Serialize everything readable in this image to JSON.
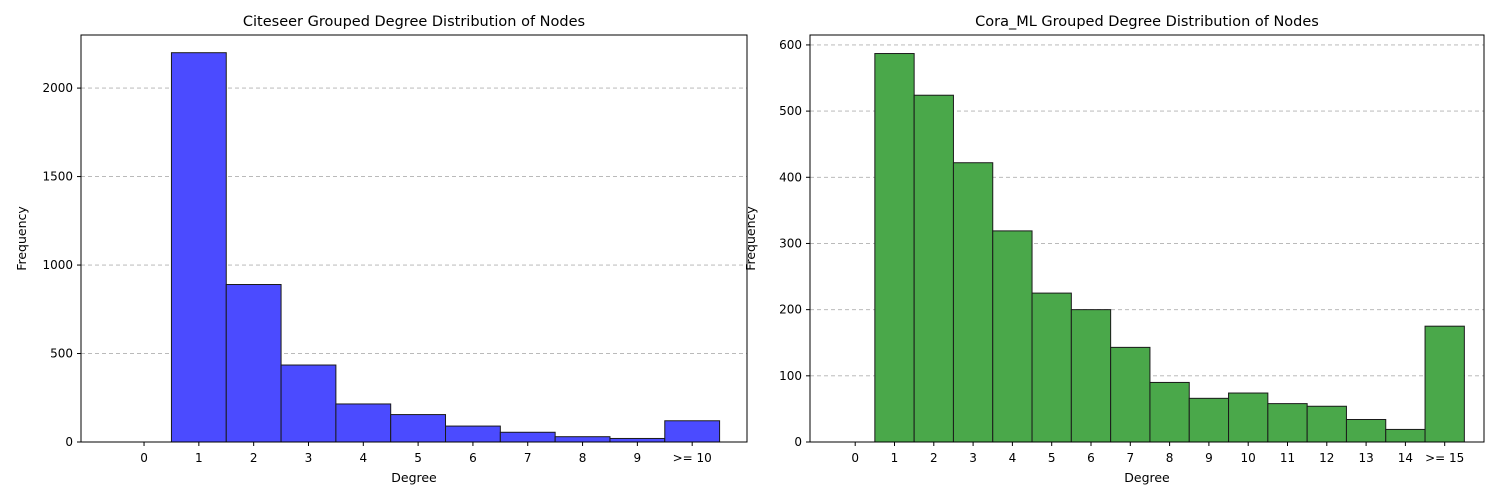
{
  "chart_data": [
    {
      "type": "bar",
      "title": "Citeseer Grouped Degree Distribution of Nodes",
      "xlabel": "Degree",
      "ylabel": "Frequency",
      "categories": [
        "0",
        "1",
        "2",
        "3",
        "4",
        "5",
        "6",
        "7",
        "8",
        "9",
        ">= 10"
      ],
      "values": [
        0,
        2200,
        890,
        435,
        215,
        155,
        90,
        55,
        30,
        20,
        120
      ],
      "ylim": [
        0,
        2300
      ],
      "yticks": [
        0,
        500,
        1000,
        1500,
        2000
      ],
      "grid": "y-dashed",
      "color": "#4b4bff"
    },
    {
      "type": "bar",
      "title": "Cora_ML Grouped Degree Distribution of Nodes",
      "xlabel": "Degree",
      "ylabel": "Frequency",
      "categories": [
        "0",
        "1",
        "2",
        "3",
        "4",
        "5",
        "6",
        "7",
        "8",
        "9",
        "10",
        "11",
        "12",
        "13",
        "14",
        ">= 15"
      ],
      "values": [
        0,
        587,
        524,
        422,
        319,
        225,
        200,
        143,
        90,
        66,
        74,
        58,
        54,
        34,
        19,
        175
      ],
      "ylim": [
        0,
        615
      ],
      "yticks": [
        0,
        100,
        200,
        300,
        400,
        500,
        600
      ],
      "grid": "y-dashed",
      "color": "#4aa84a"
    }
  ]
}
